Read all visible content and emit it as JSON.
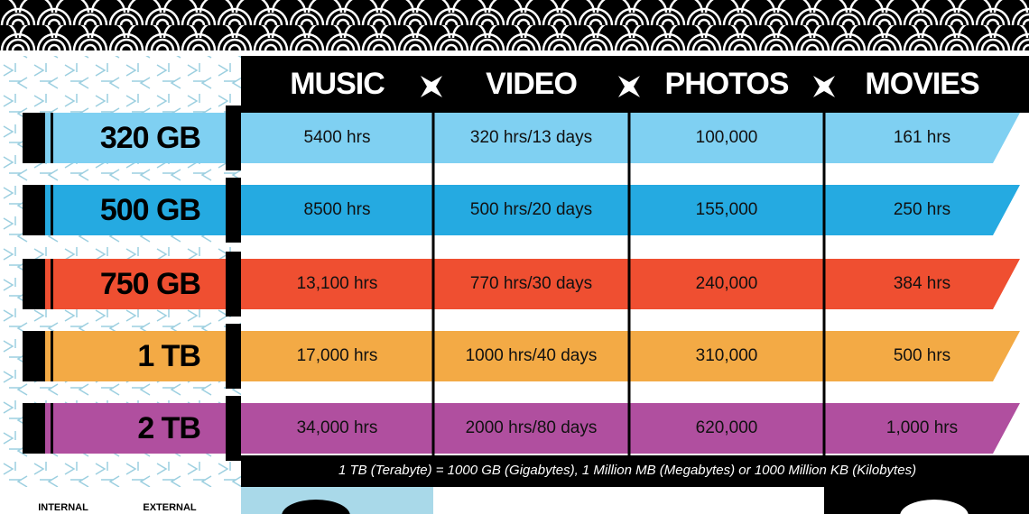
{
  "header": {
    "columns": [
      "MUSIC",
      "VIDEO",
      "PHOTOS",
      "MOVIES"
    ]
  },
  "rows": [
    {
      "label": "320 GB",
      "color": "#7fd0f2",
      "cells": [
        "5400 hrs",
        "320 hrs/13 days",
        "100,000",
        "161 hrs"
      ]
    },
    {
      "label": "500 GB",
      "color": "#25aae1",
      "cells": [
        "8500 hrs",
        "500 hrs/20 days",
        "155,000",
        "250 hrs"
      ]
    },
    {
      "label": "750 GB",
      "color": "#ef4f31",
      "cells": [
        "13,100 hrs",
        "770 hrs/30 days",
        "240,000",
        "384 hrs"
      ]
    },
    {
      "label": "1 TB",
      "color": "#f3aa45",
      "cells": [
        "17,000 hrs",
        "1000 hrs/40 days",
        "310,000",
        "500 hrs"
      ]
    },
    {
      "label": "2 TB",
      "color": "#b04f9f",
      "cells": [
        "34,000 hrs",
        "2000 hrs/80 days",
        "620,000",
        "1,000 hrs"
      ]
    }
  ],
  "footnote": "1 TB (Terabyte) = 1000 GB (Gigabytes), 1 Million MB (Megabytes) or 1000 Million KB (Kilobytes)",
  "bottom": {
    "labels": [
      "INTERNAL",
      "EXTERNAL"
    ]
  }
}
